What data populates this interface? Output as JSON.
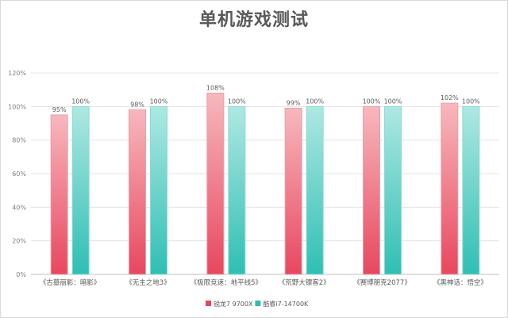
{
  "chart_data": {
    "type": "bar",
    "title": "单机游戏测试",
    "categories": [
      "《古墓丽影：暗影》",
      "《无主之地3》",
      "《极限竞速：地平线5》",
      "《荒野大镖客2》",
      "《赛博朋克2077》",
      "《黑神话：悟空》"
    ],
    "series": [
      {
        "name": "锐龙7 9700X",
        "values": [
          95,
          98,
          108,
          99,
          100,
          102
        ],
        "color": "#e8475f"
      },
      {
        "name": "酷睿i7-14700K",
        "values": [
          100,
          100,
          100,
          100,
          100,
          100
        ],
        "color": "#2fbfb3"
      }
    ],
    "ylim": [
      0,
      120
    ],
    "yticks": [
      "0%",
      "20%",
      "40%",
      "60%",
      "80%",
      "100%",
      "120%"
    ],
    "grid": true,
    "legend_position": "bottom"
  }
}
